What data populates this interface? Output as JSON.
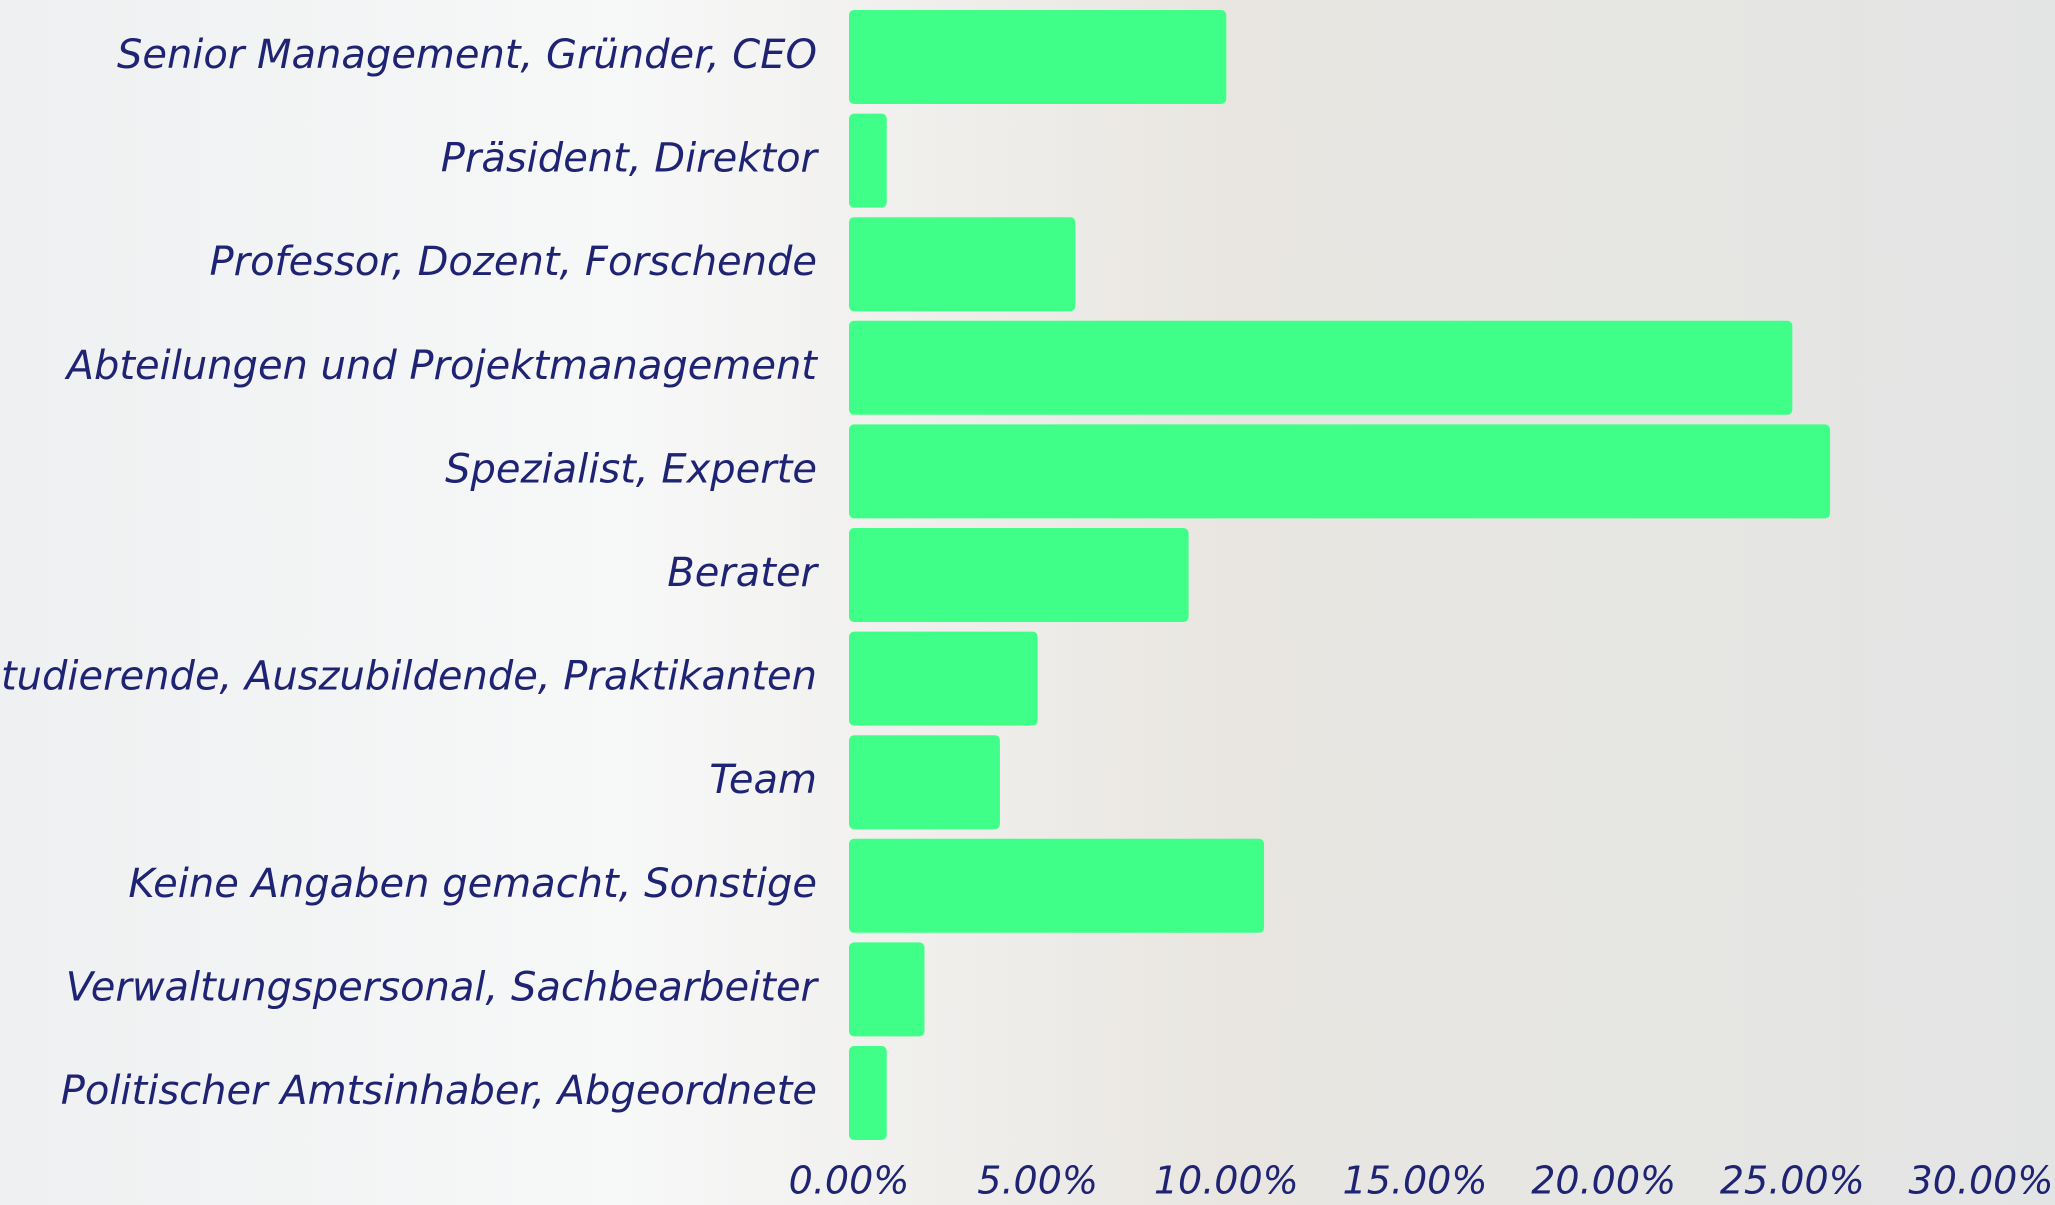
{
  "chart_data": {
    "type": "bar",
    "orientation": "horizontal",
    "categories": [
      "Senior Management, Gründer, CEO",
      "Präsident, Direktor",
      "Professor, Dozent, Forschende",
      "Abteilungen und Projektmanagement",
      "Spezialist, Experte",
      "Berater",
      "Studierende, Auszubildende, Praktikanten",
      "Team",
      "Keine Angaben gemacht, Sonstige",
      "Verwaltungspersonal, Sachbearbeiter",
      "Politischer Amtsinhaber, Abgeordnete"
    ],
    "values": [
      10,
      1,
      6,
      25,
      26,
      9,
      5,
      4,
      11,
      2,
      1
    ],
    "color": "#40ff88",
    "xlim": [
      0,
      30
    ],
    "xticks": [
      {
        "value": 0,
        "label": "0.00%"
      },
      {
        "value": 5,
        "label": "5.00%"
      },
      {
        "value": 10,
        "label": "10.00%"
      },
      {
        "value": 15,
        "label": "15.00%"
      },
      {
        "value": 20,
        "label": "20.00%"
      },
      {
        "value": 25,
        "label": "25.00%"
      },
      {
        "value": 30,
        "label": "30.00%"
      }
    ],
    "grid": false
  }
}
